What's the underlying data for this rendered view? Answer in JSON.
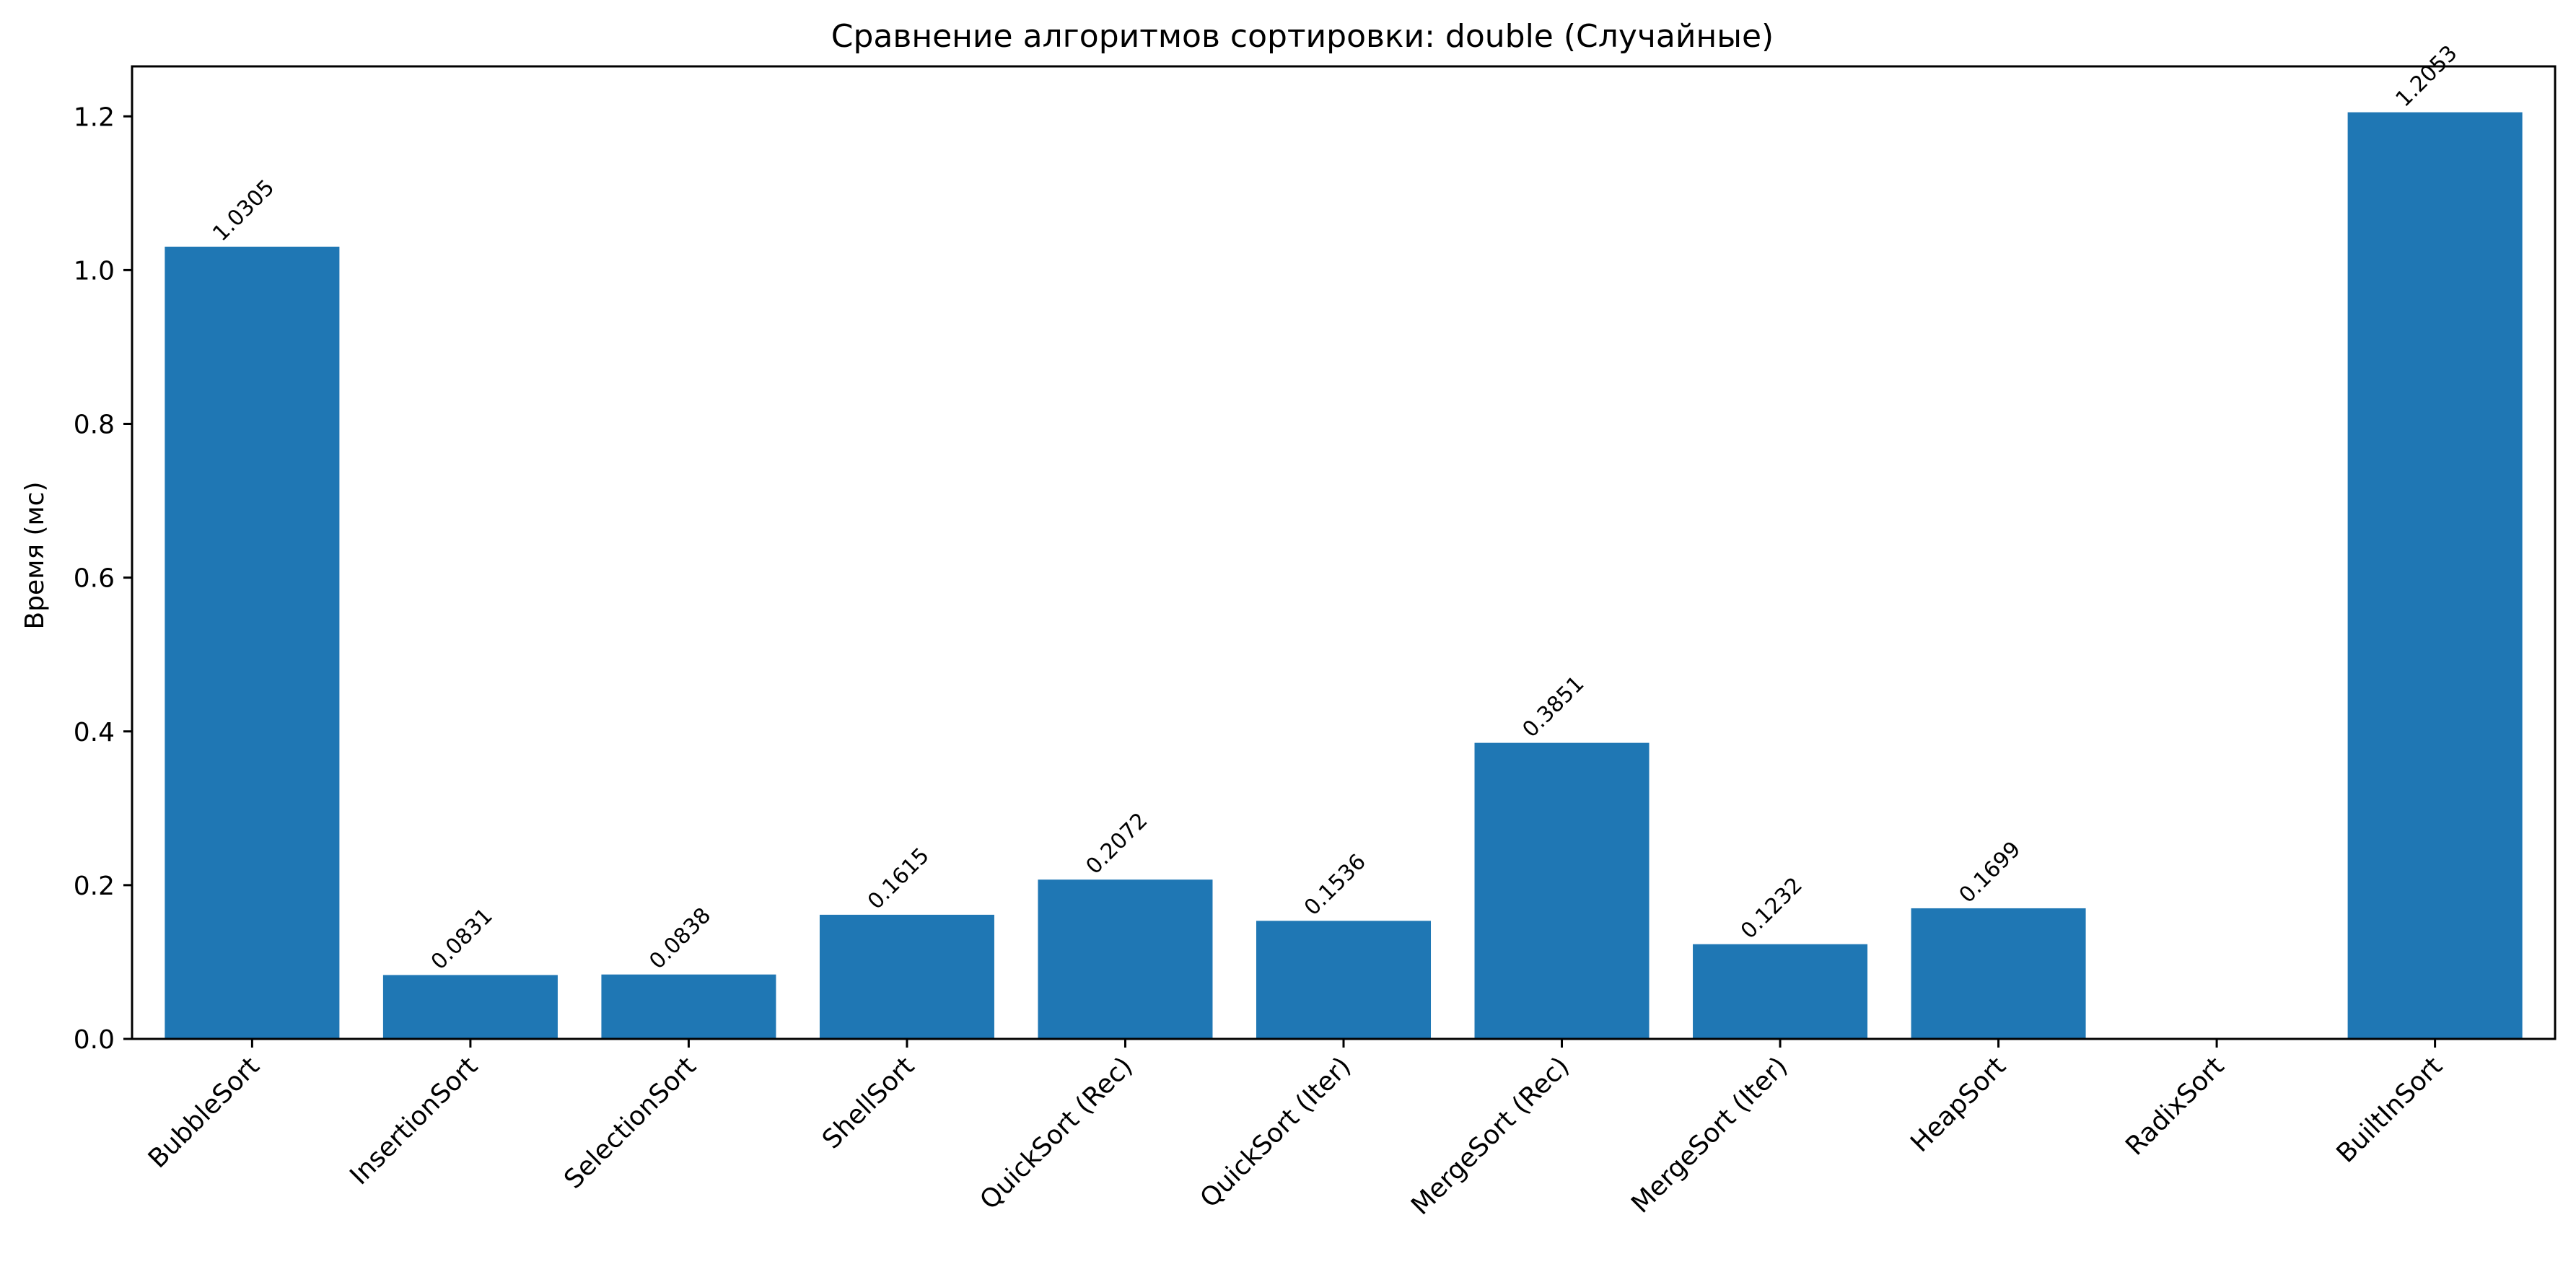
{
  "chart_data": {
    "type": "bar",
    "title": "Сравнение алгоритмов сортировки: double (Случайные)",
    "xlabel": "",
    "ylabel": "Время (мс)",
    "categories": [
      "BubbleSort",
      "InsertionSort",
      "SelectionSort",
      "ShellSort",
      "QuickSort (Rec)",
      "QuickSort (Iter)",
      "MergeSort (Rec)",
      "MergeSort (Iter)",
      "HeapSort",
      "RadixSort",
      "BuiltInSort"
    ],
    "values": [
      1.0305,
      0.0831,
      0.0838,
      0.1615,
      0.2072,
      0.1536,
      0.3851,
      0.1232,
      0.1699,
      null,
      1.2053
    ],
    "value_labels": [
      "1.0305",
      "0.0831",
      "0.0838",
      "0.1615",
      "0.2072",
      "0.1536",
      "0.3851",
      "0.1232",
      "0.1699",
      "",
      "1.2053"
    ],
    "ylim": [
      0,
      1.265
    ],
    "yticks": [
      0.0,
      0.2,
      0.4,
      0.6,
      0.8,
      1.0,
      1.2
    ],
    "ytick_labels": [
      "0.0",
      "0.2",
      "0.4",
      "0.6",
      "0.8",
      "1.0",
      "1.2"
    ],
    "bar_color": "#1f77b4",
    "grid": false,
    "legend": "none"
  }
}
